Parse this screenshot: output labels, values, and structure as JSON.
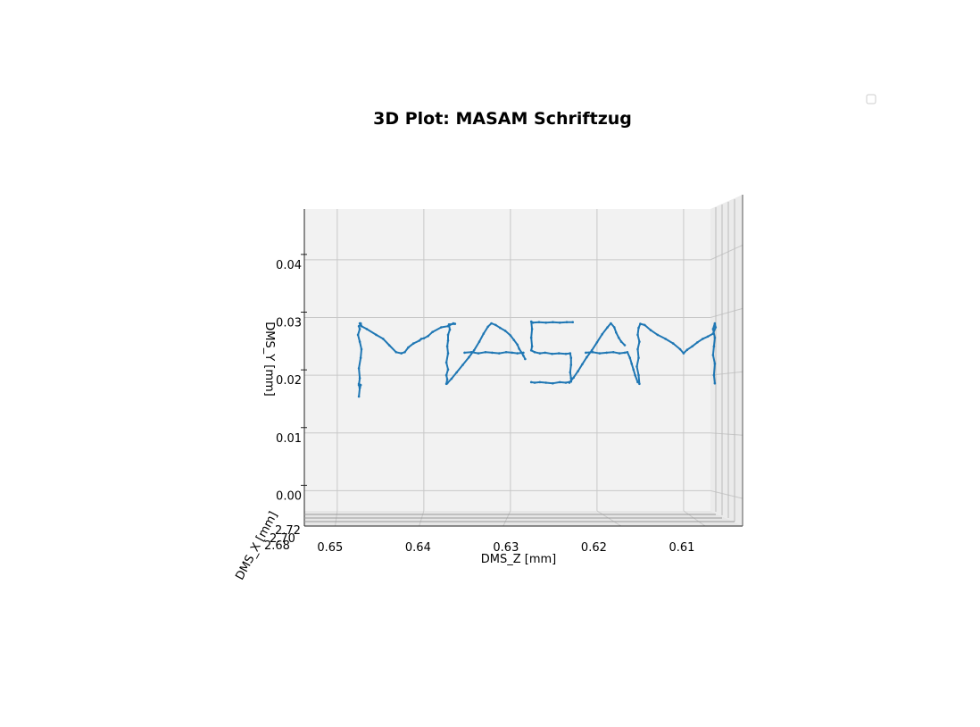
{
  "chart_data": {
    "type": "line3d",
    "title": "3D Plot: MASAM Schriftzug",
    "xlabel": "DMS_Z [mm]",
    "ylabel": "DMS_Y [mm]",
    "zlabel": "DMS_X [mm]",
    "x_ticks": [
      "0.65",
      "0.64",
      "0.63",
      "0.62",
      "0.61"
    ],
    "x_tick_values": [
      0.65,
      0.64,
      0.63,
      0.62,
      0.61
    ],
    "y_ticks": [
      "0.00",
      "0.01",
      "0.02",
      "0.03",
      "0.04"
    ],
    "y_tick_values": [
      0.0,
      0.01,
      0.02,
      0.03,
      0.04
    ],
    "z_ticks": [
      "2.68",
      "2.70",
      "2.72"
    ],
    "xlim": [
      0.6538,
      0.6069
    ],
    "ylim": [
      -0.0035,
      0.0488
    ],
    "legend": {
      "position": "top-right",
      "entries": [
        ""
      ]
    },
    "series": [
      {
        "name": "",
        "color": "#1f77b4",
        "strokes": [
          {
            "letter": "M",
            "x": [
              0.6475,
              0.6474,
              0.6473,
              0.6475,
              0.6474,
              0.6475,
              0.6474,
              0.6475,
              0.6473,
              0.6472,
              0.6474,
              0.6476,
              0.6474,
              0.6475,
              0.6473,
              0.6474,
              0.6473,
              0.6472,
              0.6466,
              0.6455,
              0.6447,
              0.644,
              0.6432,
              0.6426,
              0.6422,
              0.6418,
              0.6412,
              0.6405,
              0.6403,
              0.64,
              0.6395,
              0.639,
              0.638,
              0.6372,
              0.6366,
              0.6364,
              0.6371,
              0.637,
              0.6372,
              0.6372,
              0.6373,
              0.6372,
              0.6374,
              0.6372,
              0.6374,
              0.6373,
              0.6374
            ],
            "y": [
              0.0163,
              0.0178,
              0.0183,
              0.0185,
              0.0178,
              0.0183,
              0.0195,
              0.0212,
              0.023,
              0.0245,
              0.0258,
              0.027,
              0.028,
              0.0285,
              0.0288,
              0.029,
              0.029,
              0.0285,
              0.028,
              0.027,
              0.0263,
              0.0252,
              0.024,
              0.0238,
              0.024,
              0.0248,
              0.0255,
              0.026,
              0.0263,
              0.0264,
              0.0268,
              0.0275,
              0.0283,
              0.0285,
              0.029,
              0.0289,
              0.0288,
              0.0279,
              0.027,
              0.026,
              0.025,
              0.0238,
              0.0222,
              0.021,
              0.02,
              0.0193,
              0.0185
            ]
          },
          {
            "letter": "A1",
            "x": [
              0.6373,
              0.6368,
              0.6362,
              0.6355,
              0.6348,
              0.6342,
              0.6336,
              0.6331,
              0.6326,
              0.6322,
              0.6317,
              0.6312,
              0.6306,
              0.63,
              0.6296,
              0.6292,
              0.629,
              0.6287,
              0.6285,
              0.6283
            ],
            "y": [
              0.0186,
              0.0194,
              0.0205,
              0.0218,
              0.0231,
              0.0243,
              0.0258,
              0.0272,
              0.0284,
              0.029,
              0.0287,
              0.0282,
              0.0277,
              0.0269,
              0.0261,
              0.0253,
              0.0246,
              0.0239,
              0.0234,
              0.0228
            ]
          },
          {
            "letter": "A1-bar",
            "x": [
              0.6353,
              0.6345,
              0.6337,
              0.6329,
              0.6321,
              0.6313,
              0.6305,
              0.6298,
              0.6292,
              0.6285
            ],
            "y": [
              0.0239,
              0.024,
              0.0238,
              0.024,
              0.0239,
              0.0238,
              0.024,
              0.0239,
              0.0238,
              0.0239
            ]
          },
          {
            "letter": "S",
            "x": [
              0.6228,
              0.6235,
              0.6243,
              0.6251,
              0.6259,
              0.6267,
              0.6274,
              0.6276,
              0.6275,
              0.6276,
              0.6275,
              0.6276,
              0.6272,
              0.6266,
              0.626,
              0.6252,
              0.6244,
              0.6236,
              0.6231,
              0.623,
              0.623,
              0.6231,
              0.623,
              0.623,
              0.6236,
              0.6243,
              0.6251,
              0.6259,
              0.6266,
              0.6272,
              0.6276
            ],
            "y": [
              0.0292,
              0.0292,
              0.0291,
              0.0292,
              0.0291,
              0.0292,
              0.0291,
              0.0293,
              0.028,
              0.0265,
              0.025,
              0.0243,
              0.024,
              0.0238,
              0.0239,
              0.0237,
              0.0238,
              0.0237,
              0.0238,
              0.023,
              0.0218,
              0.0205,
              0.0195,
              0.0189,
              0.0187,
              0.0188,
              0.0186,
              0.0187,
              0.0188,
              0.0187,
              0.0188
            ]
          },
          {
            "letter": "A2",
            "x": [
              0.6232,
              0.6227,
              0.6222,
              0.6217,
              0.6212,
              0.6206,
              0.62,
              0.6194,
              0.6188,
              0.6184,
              0.618,
              0.6178,
              0.6175,
              0.6172,
              0.6168
            ],
            "y": [
              0.0187,
              0.0196,
              0.0207,
              0.0219,
              0.0231,
              0.0243,
              0.0257,
              0.0271,
              0.0283,
              0.029,
              0.0283,
              0.0274,
              0.0265,
              0.0258,
              0.0252
            ]
          },
          {
            "letter": "A2-bar",
            "x": [
              0.6213,
              0.6205,
              0.6197,
              0.6189,
              0.6181,
              0.6174,
              0.6168,
              0.6165,
              0.6162,
              0.616,
              0.6158,
              0.6156,
              0.6153
            ],
            "y": [
              0.0239,
              0.024,
              0.0238,
              0.0239,
              0.024,
              0.0238,
              0.0239,
              0.024,
              0.023,
              0.022,
              0.021,
              0.02,
              0.0188
            ]
          },
          {
            "letter": "M2",
            "x": [
              0.6151,
              0.6152,
              0.6154,
              0.6152,
              0.6153,
              0.6151,
              0.6153,
              0.6152,
              0.615,
              0.6145,
              0.6138,
              0.613,
              0.6121,
              0.6112,
              0.6104,
              0.61,
              0.6096,
              0.609,
              0.6084,
              0.6078,
              0.6072,
              0.6066,
              0.6063,
              0.6064,
              0.6066,
              0.6064,
              0.6065,
              0.6066,
              0.6064,
              0.6065,
              0.6064
            ],
            "y": [
              0.0185,
              0.02,
              0.0215,
              0.023,
              0.0245,
              0.0258,
              0.027,
              0.0282,
              0.0289,
              0.0287,
              0.0278,
              0.027,
              0.0263,
              0.0255,
              0.0245,
              0.0238,
              0.0244,
              0.025,
              0.0257,
              0.0263,
              0.0267,
              0.0272,
              0.0283,
              0.029,
              0.028,
              0.0265,
              0.025,
              0.0235,
              0.022,
              0.02,
              0.0186
            ]
          }
        ]
      }
    ]
  }
}
